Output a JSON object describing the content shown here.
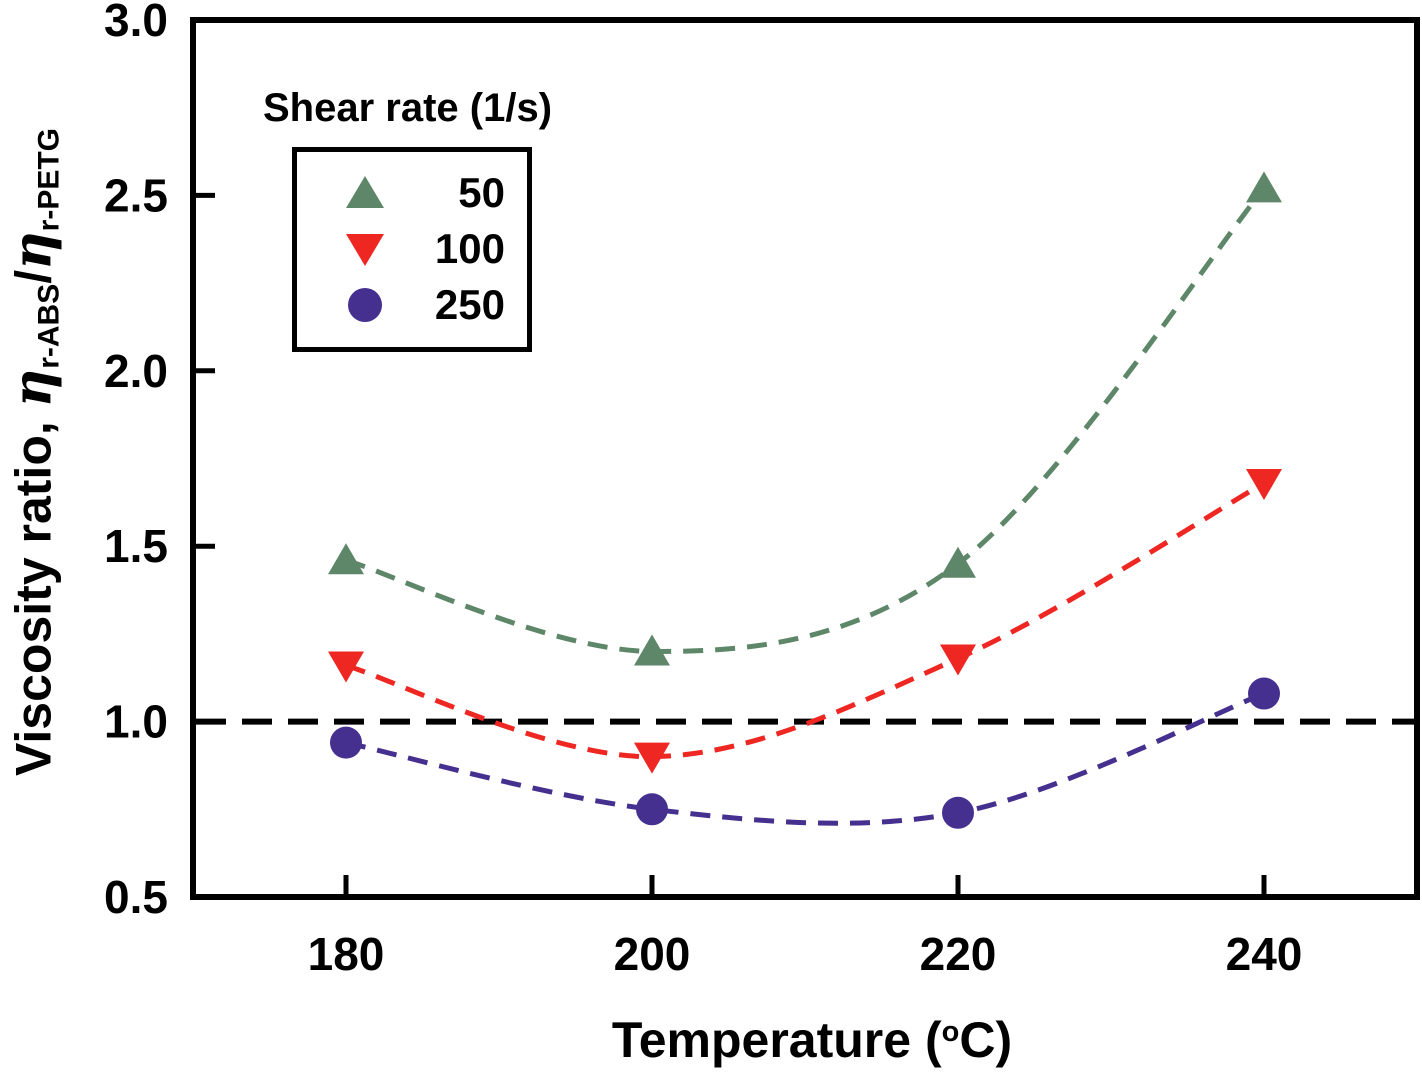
{
  "chart_data": {
    "type": "line",
    "title": "",
    "xlabel": "Temperature (°C)",
    "xlabel_parts": {
      "pre": "Temperature (",
      "sup_degree": "o",
      "post": "C)"
    },
    "ylabel": "Viscosity ratio, η r-ABS / η r-PETG",
    "ylabel_parts": {
      "pre": "Viscosity ratio, ",
      "eta": "η",
      "sub_numerator": "r-ABS",
      "slash": "/",
      "sub_denominator": "r-PETG"
    },
    "x": [
      180,
      200,
      220,
      240
    ],
    "x_tick_labels": [
      "180",
      "200",
      "220",
      "240"
    ],
    "y_tick_values": [
      3.0,
      2.5,
      2.0,
      1.5,
      1.0,
      0.5
    ],
    "y_tick_labels": [
      "3.0",
      "2.5",
      "2.0",
      "1.5",
      "1.0",
      "0.5"
    ],
    "xlim": [
      170,
      250
    ],
    "ylim": [
      0.5,
      3.0
    ],
    "grid": false,
    "line_style": "dashed",
    "reference_line": {
      "y": 1.0,
      "color": "#000000",
      "style": "dashed"
    },
    "legend": {
      "title": "Shear rate (1/s)",
      "position": "upper-left",
      "entries": [
        {
          "label": "50",
          "marker": "triangle-up",
          "color": "#5d8768"
        },
        {
          "label": "100",
          "marker": "triangle-down",
          "color": "#ee2722"
        },
        {
          "label": "250",
          "marker": "circle",
          "color": "#46308f"
        }
      ]
    },
    "series": [
      {
        "name": "50",
        "marker": "triangle-up",
        "color": "#5d8768",
        "values": [
          1.46,
          1.2,
          1.45,
          2.52
        ]
      },
      {
        "name": "100",
        "marker": "triangle-down",
        "color": "#ee2722",
        "values": [
          1.16,
          0.9,
          1.18,
          1.68
        ]
      },
      {
        "name": "250",
        "marker": "circle",
        "color": "#46308f",
        "values": [
          0.94,
          0.75,
          0.74,
          1.08
        ]
      }
    ]
  }
}
